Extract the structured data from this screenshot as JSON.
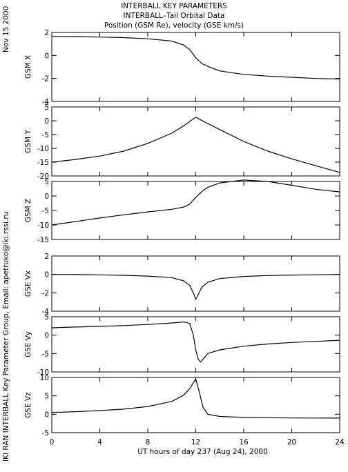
{
  "header": {
    "line1": "INTERBALL KEY PARAMETERS",
    "line2": "INTERBALL–Tail Orbital Data",
    "line3": "Position (GSM Re), velocity (GSE km/s)"
  },
  "side_date": "Nov 15 2000",
  "side_credit": "IKI RAN INTERBALL Key Parameter Group, Email: apetruko@iki.rssi.ru",
  "chart_data": {
    "type": "line",
    "xlabel": "UT hours of day 237 (Aug 24), 2000",
    "xlim": [
      0,
      24
    ],
    "xticks": [
      0,
      4,
      8,
      12,
      16,
      20,
      24
    ],
    "xtick_labels": [
      "0",
      "4",
      "8",
      "12",
      "16",
      "20",
      "24"
    ],
    "panels": [
      {
        "ylabel": "GSM X",
        "ylim": [
          -4,
          2
        ],
        "yticks": [
          -4,
          -2,
          0,
          2
        ],
        "ytick_labels": [
          "-4",
          "-2",
          "0",
          "2"
        ],
        "x": [
          0,
          2,
          4,
          6,
          8,
          10,
          11,
          11.5,
          12,
          12.5,
          13,
          14,
          16,
          18,
          20,
          22,
          24
        ],
        "y": [
          1.65,
          1.64,
          1.6,
          1.55,
          1.45,
          1.25,
          0.9,
          0.5,
          -0.2,
          -0.7,
          -0.95,
          -1.35,
          -1.65,
          -1.8,
          -1.9,
          -2.0,
          -2.05
        ]
      },
      {
        "ylabel": "GSM Y",
        "ylim": [
          -20,
          5
        ],
        "yticks": [
          -20,
          -15,
          -10,
          -5,
          0,
          5
        ],
        "ytick_labels": [
          "-20",
          "-15",
          "-10",
          "-5",
          "0",
          "5"
        ],
        "x": [
          0,
          2,
          4,
          6,
          8,
          10,
          11,
          12,
          13,
          14,
          16,
          18,
          20,
          22,
          24
        ],
        "y": [
          -15,
          -14,
          -12.8,
          -11,
          -8.2,
          -4.5,
          -1.8,
          1.3,
          -1,
          -3.2,
          -7.5,
          -11,
          -13.8,
          -16.3,
          -18.7
        ]
      },
      {
        "ylabel": "GSM Z",
        "ylim": [
          -15,
          5
        ],
        "yticks": [
          -15,
          -10,
          -5,
          0,
          5
        ],
        "ytick_labels": [
          "-15",
          "-10",
          "-5",
          "0",
          "5"
        ],
        "x": [
          0,
          2,
          4,
          6,
          8,
          10,
          11,
          11.5,
          12,
          12.5,
          13,
          14,
          16,
          18,
          20,
          22,
          24
        ],
        "y": [
          -10,
          -8.8,
          -7.6,
          -6.5,
          -5.5,
          -4.6,
          -3.8,
          -2.8,
          -0.5,
          1.5,
          3,
          4.5,
          5.5,
          5,
          3.7,
          2.3,
          1.4
        ]
      },
      {
        "ylabel": "GSE Vx",
        "ylim": [
          -4,
          2
        ],
        "yticks": [
          -4,
          -2,
          0,
          2
        ],
        "ytick_labels": [
          "-4",
          "-2",
          "0",
          "2"
        ],
        "x": [
          0,
          2,
          4,
          6,
          8,
          10,
          11,
          11.5,
          11.8,
          12,
          12.2,
          12.5,
          13,
          14,
          16,
          18,
          20,
          22,
          24
        ],
        "y": [
          0,
          -0.02,
          -0.05,
          -0.1,
          -0.18,
          -0.35,
          -0.7,
          -1.2,
          -2.0,
          -2.7,
          -2.2,
          -1.4,
          -0.85,
          -0.45,
          -0.22,
          -0.12,
          -0.07,
          -0.04,
          -0.02
        ]
      },
      {
        "ylabel": "GSE Vy",
        "ylim": [
          -10,
          5
        ],
        "yticks": [
          -10,
          -5,
          0,
          5
        ],
        "ytick_labels": [
          "-10",
          "-5",
          "0",
          "5"
        ],
        "x": [
          0,
          2,
          4,
          6,
          8,
          10,
          11,
          11.5,
          11.8,
          12,
          12.2,
          12.4,
          12.7,
          13,
          14,
          16,
          18,
          20,
          22,
          24
        ],
        "y": [
          2,
          2.2,
          2.4,
          2.6,
          2.9,
          3.3,
          3.6,
          3.2,
          0,
          -4,
          -6.5,
          -7.3,
          -6.2,
          -5,
          -4,
          -3,
          -2.4,
          -2.0,
          -1.7,
          -1.4
        ]
      },
      {
        "ylabel": "GSE Vz",
        "ylim": [
          -5,
          10
        ],
        "yticks": [
          -5,
          0,
          5,
          10
        ],
        "ytick_labels": [
          "-5",
          "0",
          "5",
          "10"
        ],
        "x": [
          0,
          2,
          4,
          6,
          8,
          10,
          11,
          11.5,
          12,
          12.3,
          12.6,
          13,
          14,
          16,
          18,
          20,
          22,
          24
        ],
        "y": [
          0.5,
          0.7,
          1.0,
          1.4,
          2.1,
          3.5,
          5.2,
          7.0,
          9.6,
          6,
          2,
          0,
          -0.6,
          -0.85,
          -0.95,
          -1.0,
          -1.02,
          -1.05
        ]
      }
    ]
  }
}
